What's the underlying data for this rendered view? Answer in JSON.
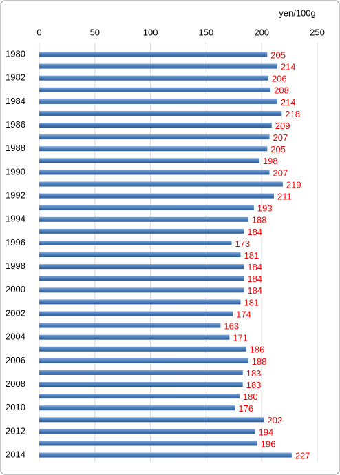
{
  "chart_data": {
    "type": "bar",
    "orientation": "horizontal",
    "axis_label": "yen/100g",
    "categories": [
      "1980",
      null,
      "1982",
      null,
      "1984",
      null,
      "1986",
      null,
      "1988",
      null,
      "1990",
      null,
      "1992",
      null,
      "1994",
      null,
      "1996",
      null,
      "1998",
      null,
      "2000",
      null,
      "2002",
      null,
      "2004",
      null,
      "2006",
      null,
      "2008",
      null,
      "2010",
      null,
      "2012",
      null,
      "2014"
    ],
    "values": [
      205,
      214,
      206,
      208,
      214,
      218,
      209,
      207,
      205,
      198,
      207,
      219,
      211,
      193,
      188,
      184,
      173,
      181,
      184,
      184,
      184,
      181,
      174,
      163,
      171,
      186,
      188,
      183,
      183,
      180,
      176,
      202,
      194,
      196,
      227
    ],
    "color": "#4a7ebb",
    "label_color": "#ff0000",
    "xlim": [
      0,
      250
    ],
    "xticks": [
      0,
      50,
      100,
      150,
      200,
      250
    ],
    "grid": true
  }
}
